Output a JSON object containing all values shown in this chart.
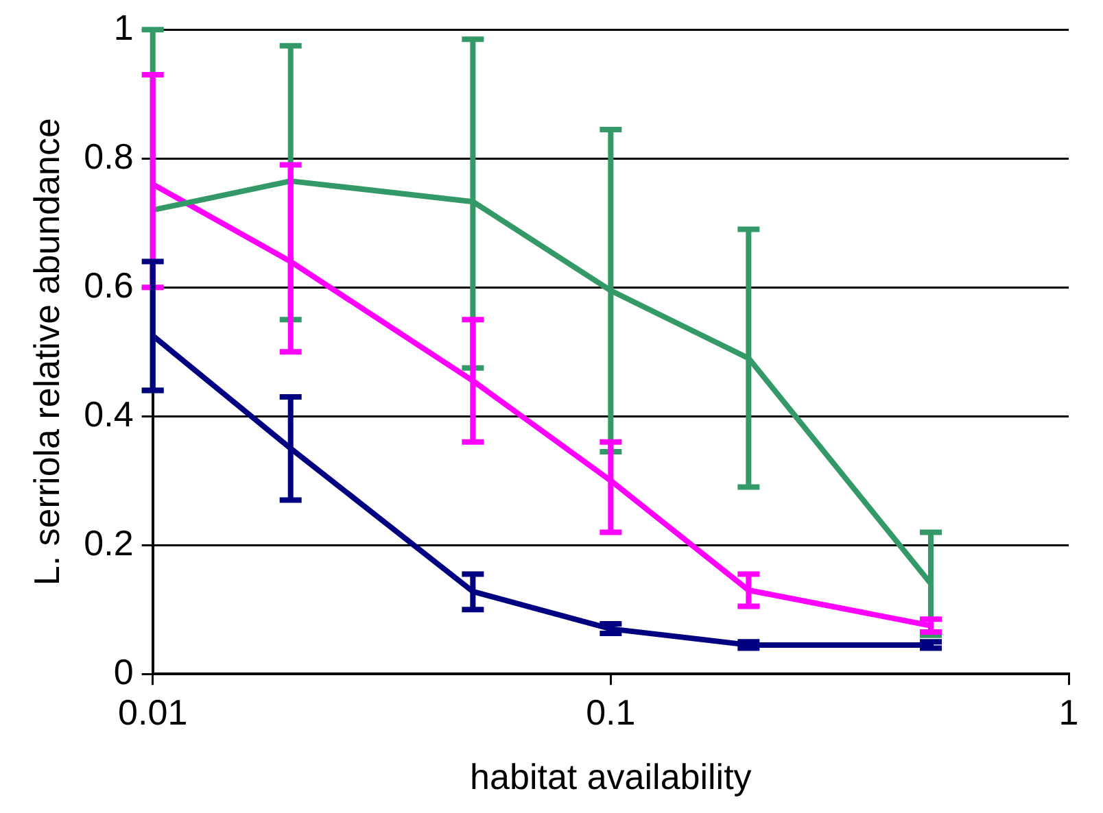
{
  "chart_data": {
    "type": "line",
    "xlabel": "habitat availability",
    "ylabel": "L. serriola relative abundance",
    "log": "x",
    "grid": "y",
    "legend": false,
    "marker": "none",
    "line_style": "solid",
    "x": [
      0.01,
      0.02,
      0.05,
      0.1,
      0.2,
      0.5
    ],
    "xlim": [
      0.01,
      1
    ],
    "xticks": [
      0.01,
      0.1,
      1
    ],
    "ylim": [
      0,
      1
    ],
    "yticks": [
      0,
      0.2,
      0.4,
      0.6,
      0.8,
      1
    ],
    "series": [
      {
        "color": "#339966",
        "values": [
          0.72,
          0.765,
          0.733,
          0.595,
          0.49,
          0.14
        ],
        "errors": [
          [
            0.44,
            1.0
          ],
          [
            0.55,
            0.975
          ],
          [
            0.475,
            0.985
          ],
          [
            0.345,
            0.845
          ],
          [
            0.29,
            0.69
          ],
          [
            0.06,
            0.22
          ]
        ]
      },
      {
        "color": "#ff00ff",
        "values": [
          0.76,
          0.64,
          0.455,
          0.3,
          0.13,
          0.075
        ],
        "errors": [
          [
            0.6,
            0.93
          ],
          [
            0.5,
            0.79
          ],
          [
            0.36,
            0.55
          ],
          [
            0.22,
            0.36
          ],
          [
            0.105,
            0.155
          ],
          [
            0.065,
            0.085
          ]
        ]
      },
      {
        "color": "#000080",
        "values": [
          0.525,
          0.35,
          0.128,
          0.07,
          0.045,
          0.045
        ],
        "errors": [
          [
            0.44,
            0.64
          ],
          [
            0.27,
            0.43
          ],
          [
            0.1,
            0.155
          ],
          [
            0.063,
            0.078
          ],
          [
            0.04,
            0.05
          ],
          [
            0.04,
            0.05
          ]
        ]
      }
    ]
  }
}
